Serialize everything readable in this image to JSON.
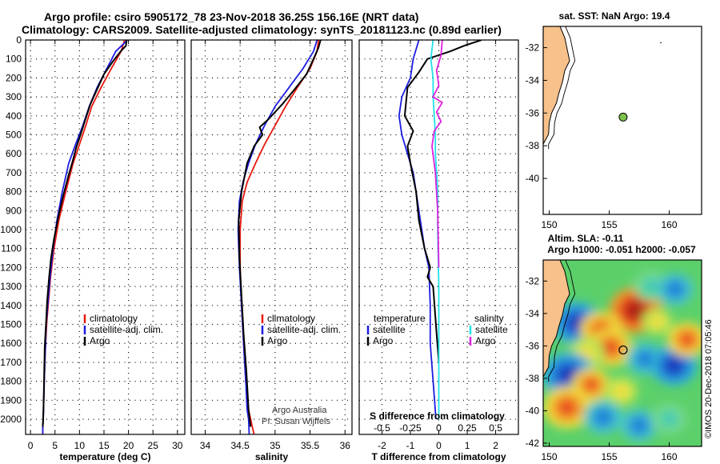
{
  "titles": {
    "line1": "Argo profile: csiro 5905172_78 23-Nov-2018 36.25S 156.16E (NRT data)",
    "line2": "Climatology: CARS2009. Satellite-adjusted climatology: synTS_20181123.nc (0.89d earlier)"
  },
  "stamp": "©IMOS 20-Dec-2018 07:05:46",
  "colors": {
    "climatology": "#e8170f",
    "satellite": "#1c1ce0",
    "argo": "#000000",
    "sat_salinity": "#22e0ea",
    "argo_salinity": "#e020e0",
    "land": "#f7c18c"
  },
  "chart_data": [
    {
      "type": "line",
      "id": "temperature",
      "xlabel": "temperature (deg C)",
      "ylabel": "",
      "xlim": [
        -1,
        31.5
      ],
      "ylim": [
        2080,
        0
      ],
      "xticks": [
        0,
        5,
        10,
        15,
        20,
        25,
        30
      ],
      "yticks": [
        0,
        100,
        200,
        300,
        400,
        500,
        600,
        700,
        800,
        900,
        1000,
        1100,
        1200,
        1300,
        1400,
        1500,
        1600,
        1700,
        1800,
        1900,
        2000
      ],
      "grid": true,
      "legend": [
        "climatology",
        "satellite-adj. clim.",
        "Argo"
      ],
      "legend_placement": "lower-right",
      "series": [
        {
          "name": "climatology",
          "color": "#e8170f",
          "x": [
            19.2,
            18.5,
            16.5,
            14.4,
            12.5,
            11.3,
            10.0,
            8.7,
            7.2,
            5.8,
            4.8,
            4.1,
            3.6,
            3.3,
            3.0,
            2.8,
            2.7,
            2.6,
            2.5,
            2.5
          ],
          "depth": [
            0,
            60,
            150,
            250,
            350,
            450,
            550,
            650,
            800,
            950,
            1100,
            1250,
            1400,
            1500,
            1650,
            1800,
            1900,
            2000,
            2050,
            2080
          ]
        },
        {
          "name": "satellite-adj. clim.",
          "color": "#1c1ce0",
          "x": [
            19.8,
            17.4,
            15.6,
            13.6,
            12.0,
            10.7,
            9.2,
            7.8,
            6.5,
            5.4,
            4.6,
            4.0,
            3.5,
            3.2,
            3.0,
            2.8,
            2.7,
            2.6,
            2.5,
            2.5
          ],
          "depth": [
            0,
            60,
            150,
            250,
            350,
            450,
            550,
            650,
            800,
            950,
            1100,
            1250,
            1400,
            1500,
            1650,
            1800,
            1900,
            2000,
            2050,
            2080
          ]
        },
        {
          "name": "Argo",
          "color": "#000000",
          "x": [
            19.6,
            19.5,
            18.4,
            16.9,
            15.0,
            13.6,
            12.2,
            11.2,
            10.2,
            9.3,
            8.6,
            7.7,
            6.7,
            5.7,
            4.8,
            4.2,
            3.8,
            3.4,
            3.2,
            2.9,
            2.8,
            2.7,
            2.6,
            2.5
          ],
          "depth": [
            0,
            30,
            60,
            110,
            180,
            260,
            340,
            420,
            500,
            570,
            640,
            720,
            820,
            930,
            1050,
            1150,
            1250,
            1380,
            1480,
            1620,
            1750,
            1880,
            2000,
            2040
          ]
        }
      ]
    },
    {
      "type": "line",
      "id": "salinity",
      "xlabel": "salinity",
      "ylabel": "",
      "xlim": [
        33.8,
        36.1
      ],
      "ylim": [
        2080,
        0
      ],
      "xticks": [
        34,
        34.5,
        35,
        35.5,
        36
      ],
      "grid": true,
      "legend": [
        "climatology",
        "satellite-adj. clim.",
        "Argo"
      ],
      "legend_placement": "lower-right",
      "annotations": [
        "Argo Australia",
        "PI: Susan Wijffels"
      ],
      "series": [
        {
          "name": "climatology",
          "color": "#e8170f",
          "x": [
            35.62,
            35.6,
            35.5,
            35.32,
            35.15,
            35.0,
            34.85,
            34.72,
            34.6,
            34.53,
            34.5,
            34.5,
            34.52,
            34.55,
            34.58,
            34.62,
            34.65,
            34.68,
            34.7
          ],
          "depth": [
            0,
            60,
            150,
            250,
            350,
            450,
            550,
            650,
            750,
            850,
            1000,
            1200,
            1400,
            1600,
            1800,
            1950,
            2000,
            2050,
            2080
          ]
        },
        {
          "name": "satellite-adj. clim.",
          "color": "#1c1ce0",
          "x": [
            35.6,
            35.55,
            35.4,
            35.2,
            35.0,
            34.85,
            34.72,
            34.62,
            34.54,
            34.49,
            34.47,
            34.49,
            34.52,
            34.55,
            34.58,
            34.6,
            34.62,
            34.63
          ],
          "depth": [
            0,
            60,
            150,
            250,
            350,
            450,
            550,
            650,
            750,
            850,
            1000,
            1200,
            1400,
            1600,
            1800,
            1950,
            2000,
            2080
          ]
        },
        {
          "name": "Argo",
          "color": "#000000",
          "x": [
            35.65,
            35.62,
            35.55,
            35.45,
            35.28,
            35.1,
            34.9,
            34.78,
            34.82,
            34.7,
            34.6,
            34.52,
            34.48,
            34.49,
            34.52,
            34.55,
            34.59,
            34.62,
            34.65
          ],
          "depth": [
            0,
            40,
            100,
            180,
            260,
            340,
            420,
            460,
            500,
            560,
            650,
            800,
            950,
            1150,
            1350,
            1550,
            1750,
            1950,
            2040
          ]
        }
      ]
    },
    {
      "type": "line",
      "id": "differences",
      "xlabel": "T difference from climatology",
      "x2label": "S difference from climatology",
      "xlim": [
        -2.8,
        2.8
      ],
      "ylim": [
        2080,
        0
      ],
      "xticks": [
        -2,
        -1,
        0,
        1,
        2
      ],
      "x2ticks": [
        "-0.5",
        "-0.25",
        "0",
        "0.25",
        "0.5"
      ],
      "x2values": [
        -0.5,
        -0.25,
        0,
        0.25,
        0.5
      ],
      "grid": true,
      "legend_left": {
        "header": "temperature",
        "items": [
          "satellite",
          "Argo"
        ]
      },
      "legend_right": {
        "header": "salinity",
        "items": [
          "satellite",
          "Argo"
        ]
      },
      "series": [
        {
          "name": "temperature satellite",
          "color": "#1c1ce0",
          "x": [
            -0.7,
            -0.9,
            -1.0,
            -1.3,
            -1.4,
            -1.3,
            -1.1,
            -0.9,
            -0.8,
            -0.7,
            -0.6,
            -0.5,
            -0.35,
            -0.3,
            -0.3,
            -0.25,
            -0.2,
            -0.15,
            -0.1
          ],
          "depth": [
            0,
            100,
            200,
            300,
            400,
            500,
            600,
            700,
            800,
            900,
            1000,
            1100,
            1200,
            1400,
            1600,
            1700,
            1800,
            1900,
            2000
          ]
        },
        {
          "name": "temperature Argo",
          "color": "#000000",
          "x": [
            1.5,
            0.9,
            0.4,
            -0.4,
            -0.7,
            -1.1,
            -1.2,
            -0.9,
            -1.1,
            -1.0,
            -0.8,
            -0.7,
            -0.5,
            -0.3,
            -0.4,
            -0.2,
            -0.1,
            0.0
          ],
          "depth": [
            0,
            30,
            60,
            100,
            170,
            250,
            400,
            480,
            560,
            650,
            800,
            950,
            1100,
            1200,
            1250,
            1300,
            1500,
            1700
          ]
        },
        {
          "name": "salinity satellite",
          "color": "#22e0ea",
          "x": [
            -0.05,
            -0.07,
            -0.05,
            -0.05,
            -0.04,
            -0.03,
            -0.03,
            -0.02,
            -0.01,
            -0.01,
            0.0,
            0.0
          ],
          "depth": [
            0,
            100,
            200,
            300,
            400,
            500,
            600,
            700,
            800,
            1000,
            1300,
            2000
          ]
        },
        {
          "name": "salinity Argo",
          "color": "#e020e0",
          "x": [
            0.03,
            0.02,
            -0.02,
            0.0,
            -0.05,
            0.03,
            -0.02,
            0.02,
            -0.04,
            -0.06,
            -0.03,
            -0.01,
            0.0
          ],
          "depth": [
            0,
            80,
            160,
            240,
            300,
            330,
            380,
            430,
            480,
            560,
            700,
            900,
            1200
          ]
        }
      ]
    },
    {
      "type": "scatter",
      "id": "sst-map",
      "title": "sat. SST: NaN Argo: 19.4",
      "xlim": [
        149.5,
        162.7
      ],
      "ylim": [
        -42.2,
        -30.7
      ],
      "xticks": [
        150,
        155,
        160
      ],
      "yticks": [
        -32,
        -34,
        -36,
        -38,
        -40
      ],
      "points": [
        {
          "label": "Argo",
          "lon": 156.16,
          "lat": -36.25,
          "color": "#7ec24a"
        }
      ]
    },
    {
      "type": "heatmap",
      "id": "sla-map",
      "title": "Altim. SLA: -0.11",
      "subtitle": "Argo h1000: -0.051 h2000: -0.057",
      "xlim": [
        149.5,
        162.7
      ],
      "ylim": [
        -42.2,
        -30.7
      ],
      "xticks": [
        150,
        155,
        160
      ],
      "yticks": [
        -32,
        -34,
        -36,
        -38,
        -40,
        -42
      ],
      "points": [
        {
          "label": "Argo",
          "lon": 156.16,
          "lat": -36.25
        }
      ],
      "anomaly_blobs": [
        {
          "lon": 157.2,
          "lat": -33.8,
          "value": 1.0
        },
        {
          "lon": 158.5,
          "lat": -32.3,
          "value": -0.4
        },
        {
          "lon": 160.5,
          "lat": -32.5,
          "value": -0.5
        },
        {
          "lon": 152.3,
          "lat": -34.6,
          "value": -0.9
        },
        {
          "lon": 154.3,
          "lat": -35.0,
          "value": 0.6
        },
        {
          "lon": 155.1,
          "lat": -36.1,
          "value": 0.7
        },
        {
          "lon": 153.1,
          "lat": -36.5,
          "value": 0.45
        },
        {
          "lon": 151.6,
          "lat": -37.8,
          "value": -1.0
        },
        {
          "lon": 153.5,
          "lat": -38.4,
          "value": 0.5
        },
        {
          "lon": 151.5,
          "lat": -39.8,
          "value": 0.85
        },
        {
          "lon": 156.0,
          "lat": -38.8,
          "value": 0.35
        },
        {
          "lon": 158.0,
          "lat": -36.8,
          "value": -0.5
        },
        {
          "lon": 160.4,
          "lat": -37.2,
          "value": -0.8
        },
        {
          "lon": 161.5,
          "lat": -35.6,
          "value": 0.55
        },
        {
          "lon": 154.5,
          "lat": -40.4,
          "value": -0.55
        },
        {
          "lon": 157.5,
          "lat": -40.9,
          "value": -0.5
        },
        {
          "lon": 160.0,
          "lat": -40.5,
          "value": -0.4
        },
        {
          "lon": 159.0,
          "lat": -34.5,
          "value": 0.25
        }
      ]
    }
  ]
}
